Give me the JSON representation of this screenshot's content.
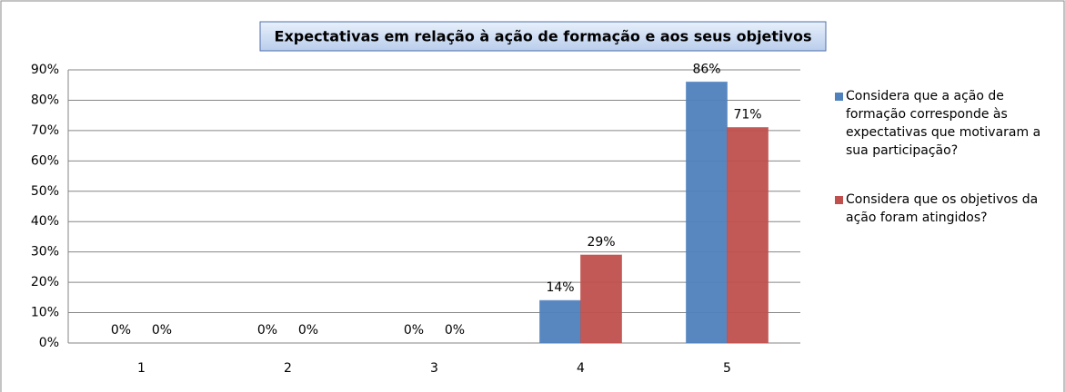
{
  "chart_data": {
    "type": "bar",
    "title": "Expectativas em relação à ação de formação e aos seus objetivos",
    "categories": [
      "1",
      "2",
      "3",
      "4",
      "5"
    ],
    "series": [
      {
        "name": "Considera que a ação de formação corresponde às expectativas que motivaram a sua participação?",
        "color": "#4f81bd",
        "values": [
          0,
          0,
          0,
          14,
          86
        ],
        "value_labels": [
          "0%",
          "0%",
          "0%",
          "14%",
          "86%"
        ]
      },
      {
        "name": "Considera que os objetivos da ação foram atingidos?",
        "color": "#c0504d",
        "values": [
          0,
          0,
          0,
          29,
          71
        ],
        "value_labels": [
          "0%",
          "0%",
          "0%",
          "29%",
          "71%"
        ]
      }
    ],
    "ylim": [
      0,
      90
    ],
    "yticks": [
      {
        "value": 0,
        "label": "0%"
      },
      {
        "value": 10,
        "label": "10%"
      },
      {
        "value": 20,
        "label": "20%"
      },
      {
        "value": 30,
        "label": "30%"
      },
      {
        "value": 40,
        "label": "40%"
      },
      {
        "value": 50,
        "label": "50%"
      },
      {
        "value": 60,
        "label": "60%"
      },
      {
        "value": 70,
        "label": "70%"
      },
      {
        "value": 80,
        "label": "80%"
      },
      {
        "value": 90,
        "label": "90%"
      }
    ],
    "grid": true,
    "legend": "right"
  }
}
